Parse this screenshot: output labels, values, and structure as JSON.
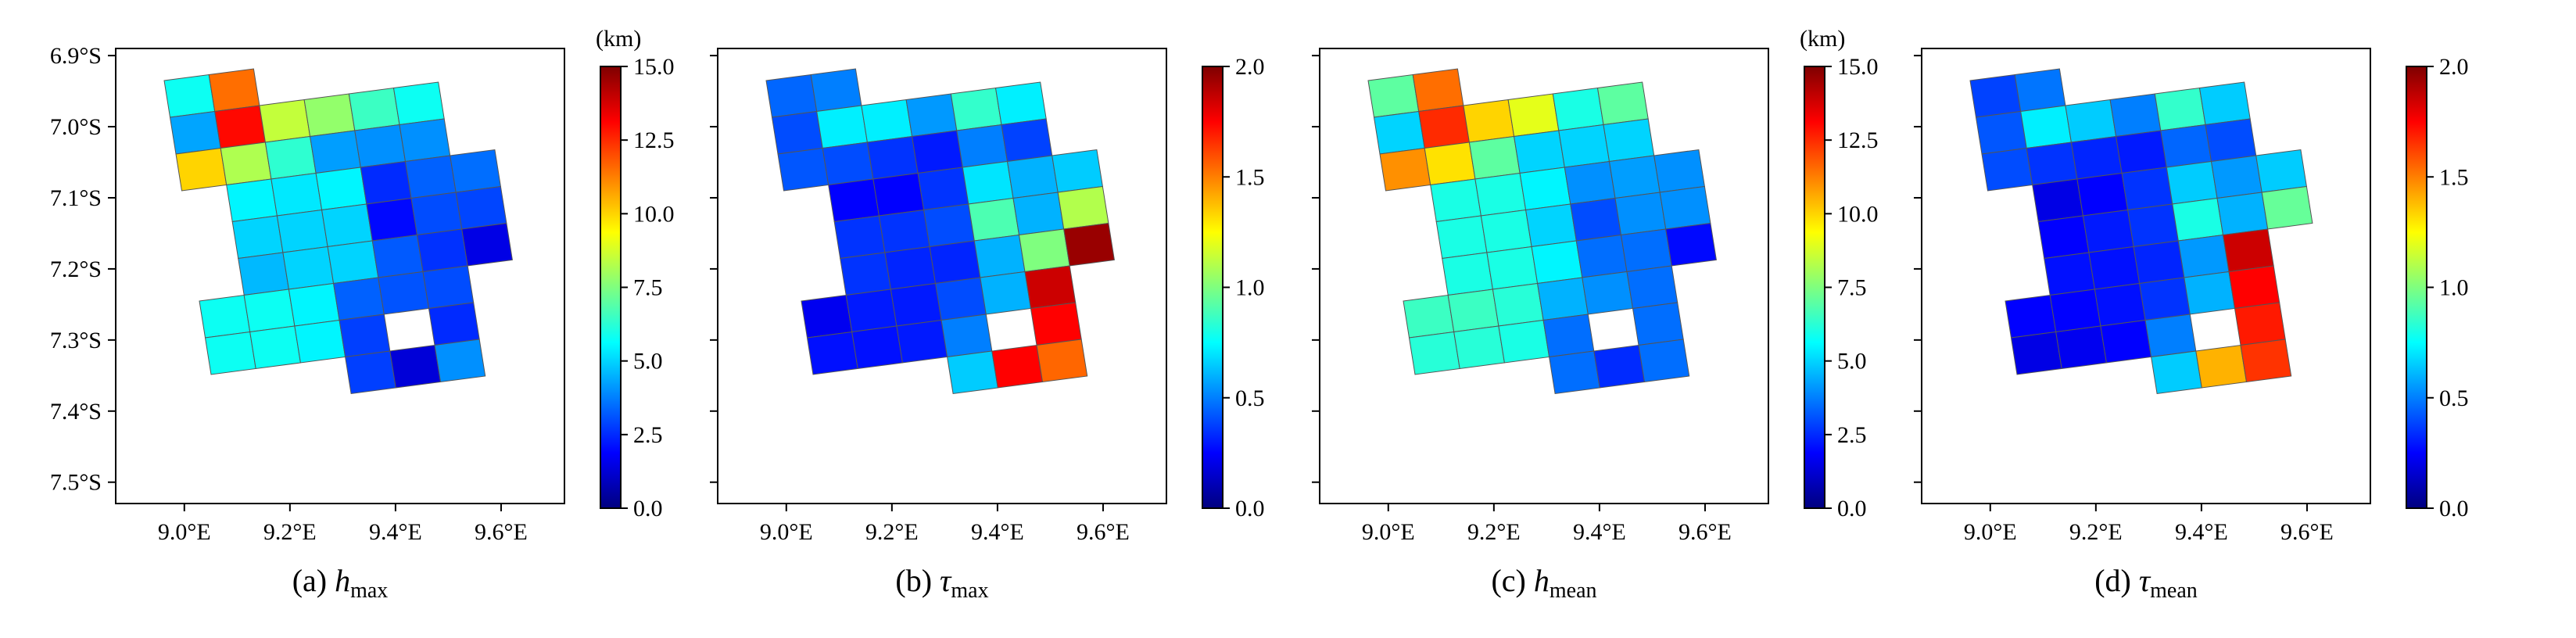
{
  "colors": {
    "jet": [
      "#00007f",
      "#0000ff",
      "#007fff",
      "#00ffff",
      "#7fff7f",
      "#ffff00",
      "#ff7f00",
      "#ff0000",
      "#7f0000"
    ],
    "background": "#ffffff",
    "cell_edge": "#555555"
  },
  "chart_data": [
    {
      "type": "heatmap",
      "caption_prefix": "(a) ",
      "caption_var": "h",
      "caption_sub": "max",
      "unit_label": "(km)",
      "colorbar_range": [
        0,
        15
      ],
      "colorbar_ticks": [
        "0.0",
        "2.5",
        "5.0",
        "7.5",
        "10.0",
        "12.5",
        "15.0"
      ],
      "xlim": [
        8.87,
        9.72
      ],
      "ylim": [
        -7.53,
        -6.89
      ],
      "x_ticks": [
        "9.0°E",
        "9.2°E",
        "9.4°E",
        "9.6°E"
      ],
      "y_ticks": [
        "6.9°S",
        "7.0°S",
        "7.1°S",
        "7.2°S",
        "7.3°S",
        "7.4°S",
        "7.5°S"
      ],
      "show_y_labels": true,
      "cells": [
        [
          0,
          0,
          5.8
        ],
        [
          1,
          0,
          11.5
        ],
        [
          0,
          1,
          4.3
        ],
        [
          1,
          1,
          13.0
        ],
        [
          2,
          1,
          8.5
        ],
        [
          3,
          1,
          7.8
        ],
        [
          4,
          1,
          6.5
        ],
        [
          5,
          1,
          5.8
        ],
        [
          0,
          2,
          10.0
        ],
        [
          1,
          2,
          8.2
        ],
        [
          2,
          2,
          6.3
        ],
        [
          3,
          2,
          4.2
        ],
        [
          4,
          2,
          4.0
        ],
        [
          5,
          2,
          4.0
        ],
        [
          1,
          3,
          5.5
        ],
        [
          2,
          3,
          5.3
        ],
        [
          3,
          3,
          5.5
        ],
        [
          4,
          3,
          2.5
        ],
        [
          5,
          3,
          3.3
        ],
        [
          6,
          3,
          3.5
        ],
        [
          1,
          4,
          5.0
        ],
        [
          2,
          4,
          5.0
        ],
        [
          3,
          4,
          5.0
        ],
        [
          4,
          4,
          2.0
        ],
        [
          5,
          4,
          3.0
        ],
        [
          6,
          4,
          2.9
        ],
        [
          1,
          5,
          4.6
        ],
        [
          2,
          5,
          5.0
        ],
        [
          3,
          5,
          5.0
        ],
        [
          4,
          5,
          3.2
        ],
        [
          5,
          5,
          2.6
        ],
        [
          6,
          5,
          1.5
        ],
        [
          0,
          6,
          5.8
        ],
        [
          1,
          6,
          5.8
        ],
        [
          2,
          6,
          5.5
        ],
        [
          3,
          6,
          3.3
        ],
        [
          4,
          6,
          3.1
        ],
        [
          5,
          6,
          3.0
        ],
        [
          0,
          7,
          5.8
        ],
        [
          1,
          7,
          5.8
        ],
        [
          2,
          7,
          5.5
        ],
        [
          3,
          7,
          2.8
        ],
        [
          5,
          7,
          2.5
        ],
        [
          3,
          8,
          2.8
        ],
        [
          4,
          8,
          1.3
        ],
        [
          5,
          8,
          4.0
        ]
      ]
    },
    {
      "type": "heatmap",
      "caption_prefix": "(b) ",
      "caption_var": "τ",
      "caption_sub": "max",
      "unit_label": "",
      "colorbar_range": [
        0,
        2
      ],
      "colorbar_ticks": [
        "0.0",
        "0.5",
        "1.0",
        "1.5",
        "2.0"
      ],
      "xlim": [
        8.87,
        9.72
      ],
      "ylim": [
        -7.53,
        -6.89
      ],
      "x_ticks": [
        "9.0°E",
        "9.2°E",
        "9.4°E",
        "9.6°E"
      ],
      "y_ticks": [
        "6.9°S",
        "7.0°S",
        "7.1°S",
        "7.2°S",
        "7.3°S",
        "7.4°S",
        "7.5°S"
      ],
      "show_y_labels": false,
      "cells": [
        [
          0,
          0,
          0.45
        ],
        [
          1,
          0,
          0.5
        ],
        [
          0,
          1,
          0.4
        ],
        [
          1,
          1,
          0.72
        ],
        [
          2,
          1,
          0.72
        ],
        [
          3,
          1,
          0.55
        ],
        [
          4,
          1,
          0.85
        ],
        [
          5,
          1,
          0.72
        ],
        [
          0,
          2,
          0.42
        ],
        [
          1,
          2,
          0.4
        ],
        [
          2,
          2,
          0.35
        ],
        [
          3,
          2,
          0.3
        ],
        [
          4,
          2,
          0.5
        ],
        [
          5,
          2,
          0.38
        ],
        [
          1,
          3,
          0.25
        ],
        [
          2,
          3,
          0.25
        ],
        [
          3,
          3,
          0.35
        ],
        [
          4,
          3,
          0.7
        ],
        [
          5,
          3,
          0.6
        ],
        [
          6,
          3,
          0.65
        ],
        [
          1,
          4,
          0.35
        ],
        [
          2,
          4,
          0.35
        ],
        [
          3,
          4,
          0.4
        ],
        [
          4,
          4,
          0.9
        ],
        [
          5,
          4,
          0.6
        ],
        [
          6,
          4,
          1.1
        ],
        [
          1,
          5,
          0.35
        ],
        [
          2,
          5,
          0.32
        ],
        [
          3,
          5,
          0.32
        ],
        [
          4,
          5,
          0.6
        ],
        [
          5,
          5,
          1.0
        ],
        [
          6,
          5,
          1.95
        ],
        [
          0,
          6,
          0.22
        ],
        [
          1,
          6,
          0.3
        ],
        [
          2,
          6,
          0.3
        ],
        [
          3,
          6,
          0.4
        ],
        [
          4,
          6,
          0.6
        ],
        [
          5,
          6,
          1.85
        ],
        [
          0,
          7,
          0.28
        ],
        [
          1,
          7,
          0.28
        ],
        [
          2,
          7,
          0.3
        ],
        [
          3,
          7,
          0.5
        ],
        [
          5,
          7,
          1.75
        ],
        [
          3,
          8,
          0.65
        ],
        [
          4,
          8,
          1.75
        ],
        [
          5,
          8,
          1.55
        ]
      ]
    },
    {
      "type": "heatmap",
      "caption_prefix": "(c) ",
      "caption_var": "h",
      "caption_sub": "mean",
      "unit_label": "(km)",
      "colorbar_range": [
        0,
        15
      ],
      "colorbar_ticks": [
        "0.0",
        "2.5",
        "5.0",
        "7.5",
        "10.0",
        "12.5",
        "15.0"
      ],
      "xlim": [
        8.87,
        9.72
      ],
      "ylim": [
        -7.53,
        -6.89
      ],
      "x_ticks": [
        "9.0°E",
        "9.2°E",
        "9.4°E",
        "9.6°E"
      ],
      "y_ticks": [
        "6.9°S",
        "7.0°S",
        "7.1°S",
        "7.2°S",
        "7.3°S",
        "7.4°S",
        "7.5°S"
      ],
      "show_y_labels": false,
      "cells": [
        [
          0,
          0,
          7.0
        ],
        [
          1,
          0,
          11.5
        ],
        [
          0,
          1,
          5.0
        ],
        [
          1,
          1,
          12.5
        ],
        [
          2,
          1,
          10.0
        ],
        [
          3,
          1,
          9.0
        ],
        [
          4,
          1,
          6.0
        ],
        [
          5,
          1,
          7.0
        ],
        [
          0,
          2,
          11.0
        ],
        [
          1,
          2,
          9.8
        ],
        [
          2,
          2,
          7.0
        ],
        [
          3,
          2,
          5.0
        ],
        [
          4,
          2,
          5.0
        ],
        [
          5,
          2,
          5.0
        ],
        [
          1,
          3,
          6.0
        ],
        [
          2,
          3,
          6.0
        ],
        [
          3,
          3,
          5.5
        ],
        [
          4,
          3,
          4.0
        ],
        [
          5,
          3,
          4.2
        ],
        [
          6,
          3,
          4.0
        ],
        [
          1,
          4,
          6.0
        ],
        [
          2,
          4,
          6.0
        ],
        [
          3,
          4,
          5.0
        ],
        [
          4,
          4,
          3.0
        ],
        [
          5,
          4,
          4.0
        ],
        [
          6,
          4,
          4.0
        ],
        [
          1,
          5,
          6.0
        ],
        [
          2,
          5,
          6.0
        ],
        [
          3,
          5,
          5.5
        ],
        [
          4,
          5,
          3.5
        ],
        [
          5,
          5,
          3.5
        ],
        [
          6,
          5,
          2.0
        ],
        [
          0,
          6,
          6.5
        ],
        [
          1,
          6,
          6.5
        ],
        [
          2,
          6,
          6.2
        ],
        [
          3,
          6,
          4.5
        ],
        [
          4,
          6,
          4.0
        ],
        [
          5,
          6,
          3.5
        ],
        [
          0,
          7,
          6.2
        ],
        [
          1,
          7,
          6.2
        ],
        [
          2,
          7,
          6.0
        ],
        [
          3,
          7,
          3.5
        ],
        [
          5,
          7,
          3.5
        ],
        [
          3,
          8,
          3.5
        ],
        [
          4,
          8,
          2.5
        ],
        [
          5,
          8,
          3.5
        ]
      ]
    },
    {
      "type": "heatmap",
      "caption_prefix": "(d) ",
      "caption_var": "τ",
      "caption_sub": "mean",
      "unit_label": "",
      "colorbar_range": [
        0,
        2
      ],
      "colorbar_ticks": [
        "0.0",
        "0.5",
        "1.0",
        "1.5",
        "2.0"
      ],
      "xlim": [
        8.87,
        9.72
      ],
      "ylim": [
        -7.53,
        -6.89
      ],
      "x_ticks": [
        "9.0°E",
        "9.2°E",
        "9.4°E",
        "9.6°E"
      ],
      "y_ticks": [
        "6.9°S",
        "7.0°S",
        "7.1°S",
        "7.2°S",
        "7.3°S",
        "7.4°S",
        "7.5°S"
      ],
      "show_y_labels": false,
      "cells": [
        [
          0,
          0,
          0.38
        ],
        [
          1,
          0,
          0.48
        ],
        [
          0,
          1,
          0.42
        ],
        [
          1,
          1,
          0.72
        ],
        [
          2,
          1,
          0.65
        ],
        [
          3,
          1,
          0.5
        ],
        [
          4,
          1,
          0.85
        ],
        [
          5,
          1,
          0.65
        ],
        [
          0,
          2,
          0.4
        ],
        [
          1,
          2,
          0.35
        ],
        [
          2,
          2,
          0.32
        ],
        [
          3,
          2,
          0.3
        ],
        [
          4,
          2,
          0.45
        ],
        [
          5,
          2,
          0.4
        ],
        [
          1,
          3,
          0.2
        ],
        [
          2,
          3,
          0.25
        ],
        [
          3,
          3,
          0.35
        ],
        [
          4,
          3,
          0.65
        ],
        [
          5,
          3,
          0.55
        ],
        [
          6,
          3,
          0.65
        ],
        [
          1,
          4,
          0.25
        ],
        [
          2,
          4,
          0.3
        ],
        [
          3,
          4,
          0.35
        ],
        [
          4,
          4,
          0.8
        ],
        [
          5,
          4,
          0.6
        ],
        [
          6,
          4,
          0.95
        ],
        [
          1,
          5,
          0.28
        ],
        [
          2,
          5,
          0.28
        ],
        [
          3,
          5,
          0.32
        ],
        [
          4,
          5,
          0.55
        ],
        [
          5,
          5,
          1.85
        ],
        [
          0,
          6,
          0.25
        ],
        [
          1,
          6,
          0.25
        ],
        [
          2,
          6,
          0.28
        ],
        [
          3,
          6,
          0.35
        ],
        [
          4,
          6,
          0.6
        ],
        [
          5,
          6,
          1.75
        ],
        [
          0,
          7,
          0.2
        ],
        [
          1,
          7,
          0.22
        ],
        [
          2,
          7,
          0.25
        ],
        [
          3,
          7,
          0.5
        ],
        [
          5,
          7,
          1.7
        ],
        [
          3,
          8,
          0.65
        ],
        [
          4,
          8,
          1.4
        ],
        [
          5,
          8,
          1.65
        ]
      ]
    }
  ]
}
